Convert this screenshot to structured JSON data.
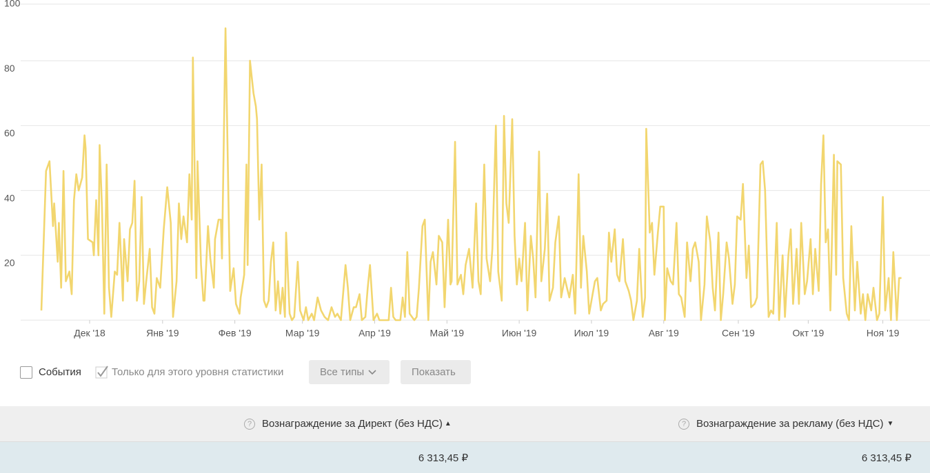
{
  "chart_data": {
    "type": "line",
    "color": "#f2d66f",
    "grid": true,
    "x": [
      0,
      2,
      3.5,
      5,
      5.5,
      7,
      7.5,
      8.5,
      9.5,
      10.5,
      12,
      13,
      14,
      15,
      16,
      17.5,
      18.5,
      19,
      20,
      22,
      22.5,
      23.5,
      24.5,
      25,
      26,
      27,
      28,
      29,
      30,
      31.5,
      32.5,
      33.5,
      35,
      35.5,
      37,
      38,
      39,
      40,
      41,
      42,
      43,
      44,
      45,
      46.5,
      47.5,
      48.5,
      49.5,
      51,
      52.5,
      54,
      55.5,
      56.5,
      58,
      59,
      60,
      61,
      62.5,
      63.5,
      64.5,
      65,
      66.5,
      67,
      68.5,
      69.5,
      70,
      71.5,
      72.5,
      74,
      74.5,
      76,
      77,
      77.5,
      79,
      80.5,
      81,
      82.5,
      83.5,
      85,
      85.5,
      87,
      88,
      88.5,
      89.5,
      91,
      92,
      92.5,
      93.5,
      94.5,
      95.5,
      96.5,
      97.5,
      98.5,
      99.5,
      100.5,
      101.5,
      102.5,
      103.5,
      104.5,
      105,
      106.5,
      107.5,
      108.5,
      110,
      111,
      112.5,
      113.5,
      114.5,
      116,
      117,
      118.5,
      120,
      121.5,
      123,
      124.5,
      126,
      127,
      128.5,
      130.5,
      131.5,
      132.5,
      134,
      135,
      136.5,
      137.5,
      139,
      140,
      141,
      142.5,
      144,
      145,
      146,
      148,
      149,
      150,
      151,
      152,
      154,
      155,
      156,
      157,
      158,
      160,
      161,
      162,
      163.5,
      164.5,
      166,
      167,
      168,
      169.5,
      170.5,
      172,
      173,
      174.5,
      175.5,
      176,
      177.5,
      178.5,
      180,
      181,
      182,
      183.5,
      185,
      186.5,
      187.5,
      188.5,
      190,
      191,
      192.5,
      193.5,
      195,
      196,
      197.5,
      198.5,
      199.5,
      200.5,
      202,
      203,
      204,
      205,
      206,
      207.5,
      208.5,
      210,
      211,
      212,
      213.5,
      214.5,
      216,
      217,
      218,
      219.5,
      220.5,
      222,
      223,
      224.5,
      225.5,
      226.5,
      228,
      229,
      230.5,
      231.5,
      232.5,
      234,
      235,
      236.5,
      237.5,
      238.5,
      240,
      241,
      242.5,
      243.5,
      244.5,
      246,
      247,
      248,
      249.5,
      250.5,
      252,
      253,
      254,
      255.5,
      256.5,
      258,
      259,
      259.5,
      261,
      262,
      263,
      264.5,
      265.5,
      267,
      267.5,
      268.5,
      270,
      271,
      272.5,
      273.5,
      274.5,
      276,
      277,
      278.5,
      279.5,
      280.5,
      282,
      283,
      284.5,
      285.5,
      287,
      288,
      289,
      290.5,
      291.5,
      292.5,
      294,
      295,
      296.5,
      297.5,
      298.5,
      300,
      301,
      302.5,
      303.5,
      304.5,
      306,
      307,
      308.5,
      309.5,
      310.5,
      312,
      313,
      314,
      315.5,
      316.5,
      318,
      319,
      320.5,
      321.5,
      322.5,
      324,
      325,
      326,
      327.5,
      328.5,
      330,
      331,
      332,
      333.5,
      334.5,
      335.5,
      336.5,
      337.5,
      338.5,
      340,
      341,
      341.5,
      343,
      344,
      345.5,
      346.5,
      347.5,
      349,
      350,
      351.5,
      352.5,
      353.5,
      354.5,
      356,
      357,
      358.5,
      359.5,
      361,
      362,
      363.5,
      364.5,
      365.5,
      367,
      368,
      369
    ],
    "values": [
      3,
      46,
      49,
      29,
      36,
      18,
      30,
      10,
      46,
      12,
      15,
      8,
      37,
      45,
      40,
      44,
      57,
      53,
      25,
      24,
      20,
      37,
      20,
      54,
      35,
      2,
      48,
      10,
      1,
      15,
      14,
      30,
      6,
      25,
      12,
      28,
      30,
      43,
      6,
      12,
      38,
      5,
      12,
      22,
      4,
      2,
      13,
      10,
      28,
      41,
      30,
      1,
      12,
      36,
      25,
      32,
      24,
      45,
      31,
      81,
      13,
      49,
      17,
      6,
      6,
      29,
      19,
      10,
      25,
      31,
      31,
      19,
      90,
      27,
      9,
      16,
      5,
      2,
      7,
      14,
      48,
      17,
      80,
      70,
      66,
      62,
      31,
      48,
      6,
      4,
      6,
      18,
      24,
      3,
      12,
      2,
      10,
      1,
      27,
      2,
      0,
      1,
      18,
      3,
      0,
      4,
      0,
      2,
      0,
      7,
      3,
      1,
      0,
      4,
      1,
      2,
      0,
      17,
      10,
      0,
      4,
      4,
      8,
      0,
      1,
      10,
      17,
      0,
      2,
      0,
      0,
      0,
      0,
      10,
      1,
      0,
      0,
      7,
      1,
      21,
      2,
      0,
      1,
      10,
      29,
      31,
      0,
      18,
      21,
      11,
      26,
      24,
      4,
      31,
      11,
      12,
      55,
      11,
      14,
      8,
      17,
      22,
      10,
      36,
      12,
      8,
      48,
      19,
      12,
      22,
      60,
      15,
      6,
      63,
      36,
      30,
      62,
      26,
      11,
      19,
      12,
      30,
      3,
      26,
      19,
      7,
      52,
      12,
      22,
      39,
      6,
      10,
      24,
      32,
      7,
      13,
      10,
      7,
      14,
      2,
      45,
      10,
      26,
      15,
      2,
      8,
      12,
      13,
      3,
      5,
      6,
      27,
      18,
      28,
      14,
      12,
      25,
      12,
      9,
      6,
      0,
      6,
      22,
      1,
      7,
      59,
      27,
      30,
      14,
      27,
      35,
      35,
      0,
      16,
      12,
      11,
      30,
      8,
      7,
      1,
      24,
      12,
      22,
      24,
      18,
      0,
      11,
      32,
      24,
      10,
      3,
      27,
      0,
      8,
      24,
      19,
      5,
      11,
      32,
      31,
      42,
      13,
      23,
      4,
      5,
      7,
      48,
      49,
      40,
      1,
      3,
      2,
      30,
      0,
      20,
      1,
      20,
      28,
      5,
      22,
      5,
      30,
      8,
      12,
      25,
      8,
      22,
      9,
      42,
      57,
      24,
      28,
      3,
      51,
      14,
      49,
      48,
      13,
      2,
      0,
      29,
      3,
      18,
      2,
      8,
      0,
      8,
      3,
      10,
      0,
      2,
      38,
      3,
      13,
      0,
      21,
      0,
      13,
      13
    ],
    "xlim": [
      0,
      370
    ],
    "xticks": [
      {
        "value": 20.7,
        "label": "Дек '18"
      },
      {
        "value": 52,
        "label": "Янв '19"
      },
      {
        "value": 83,
        "label": "Фев '19"
      },
      {
        "value": 112,
        "label": "Мар '19"
      },
      {
        "value": 143,
        "label": "Апр '19"
      },
      {
        "value": 174,
        "label": "Май '19"
      },
      {
        "value": 205,
        "label": "Июн '19"
      },
      {
        "value": 236,
        "label": "Июл '19"
      },
      {
        "value": 267,
        "label": "Авг '19"
      },
      {
        "value": 299,
        "label": "Сен '19"
      },
      {
        "value": 329,
        "label": "Окт '19"
      },
      {
        "value": 361,
        "label": "Ноя '19"
      }
    ],
    "ylim": [
      0,
      100
    ],
    "yticks": [
      20,
      40,
      60,
      80,
      100
    ]
  },
  "controls": {
    "events": "События",
    "only_level": "Только для этого уровня статистики",
    "types_button": "Все типы",
    "show_button": "Показать"
  },
  "table": {
    "headers": [
      "Вознаграждение за Директ (без НДС)",
      "Вознаграждение за рекламу (без НДС)"
    ],
    "row": [
      "6 313,45 ₽",
      "6 313,45 ₽"
    ]
  }
}
